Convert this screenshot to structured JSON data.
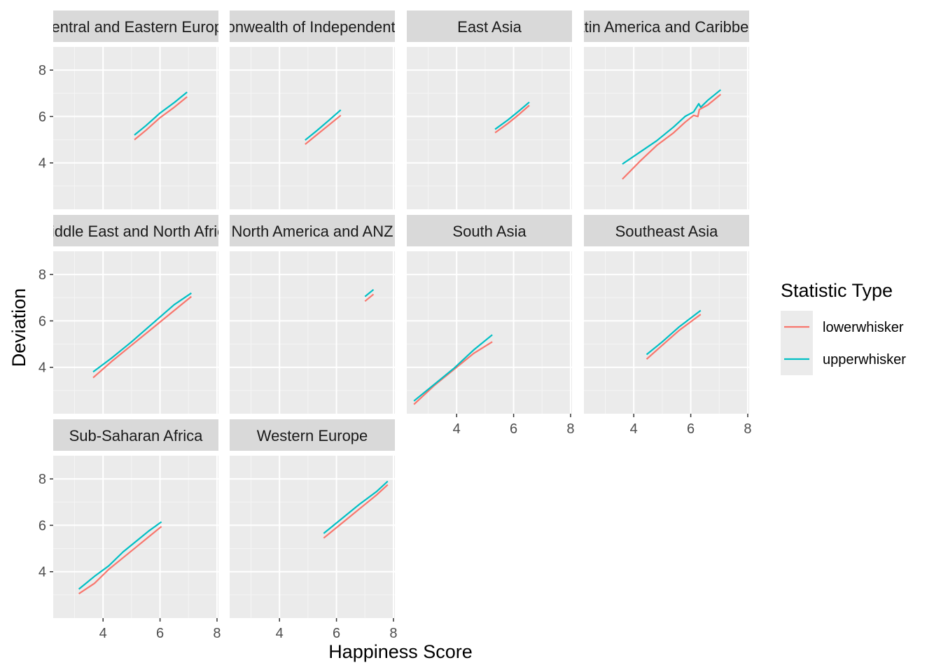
{
  "chart_data": {
    "type": "line",
    "facet_layout": "wrap",
    "xlabel": "Happiness Score",
    "ylabel": "Deviation",
    "xlim": [
      2.25,
      8.05
    ],
    "ylim": [
      2.0,
      9.0
    ],
    "x_ticks": [
      4,
      6,
      8
    ],
    "y_ticks": [
      4,
      6,
      8
    ],
    "grid": true,
    "legend": {
      "title": "Statistic Type",
      "position": "right",
      "entries": [
        {
          "name": "lowerwhisker",
          "color": "#F8766D"
        },
        {
          "name": "upperwhisker",
          "color": "#00BFC4"
        }
      ]
    },
    "panels": [
      {
        "title": "Central and Eastern Europe",
        "series": [
          {
            "name": "lowerwhisker",
            "points": [
              [
                5.1,
                5.0
              ],
              [
                5.5,
                5.4
              ],
              [
                6.0,
                5.95
              ],
              [
                6.5,
                6.4
              ],
              [
                6.95,
                6.85
              ]
            ]
          },
          {
            "name": "upperwhisker",
            "points": [
              [
                5.1,
                5.2
              ],
              [
                5.5,
                5.6
              ],
              [
                6.0,
                6.15
              ],
              [
                6.5,
                6.6
              ],
              [
                6.95,
                7.05
              ]
            ]
          }
        ]
      },
      {
        "title": "Commonwealth of Independent States",
        "series": [
          {
            "name": "lowerwhisker",
            "points": [
              [
                4.9,
                4.8
              ],
              [
                5.3,
                5.2
              ],
              [
                5.7,
                5.6
              ],
              [
                6.15,
                6.05
              ]
            ]
          },
          {
            "name": "upperwhisker",
            "points": [
              [
                4.9,
                4.98
              ],
              [
                5.3,
                5.38
              ],
              [
                5.7,
                5.8
              ],
              [
                6.15,
                6.28
              ]
            ]
          }
        ]
      },
      {
        "title": "East Asia",
        "series": [
          {
            "name": "lowerwhisker",
            "points": [
              [
                5.35,
                5.3
              ],
              [
                5.8,
                5.7
              ],
              [
                6.2,
                6.1
              ],
              [
                6.55,
                6.48
              ]
            ]
          },
          {
            "name": "upperwhisker",
            "points": [
              [
                5.35,
                5.45
              ],
              [
                5.8,
                5.85
              ],
              [
                6.2,
                6.25
              ],
              [
                6.55,
                6.62
              ]
            ]
          }
        ]
      },
      {
        "title": "Latin America and Caribbean",
        "series": [
          {
            "name": "lowerwhisker",
            "points": [
              [
                3.6,
                3.3
              ],
              [
                4.2,
                4.05
              ],
              [
                4.8,
                4.75
              ],
              [
                5.4,
                5.3
              ],
              [
                5.8,
                5.75
              ],
              [
                6.1,
                6.05
              ],
              [
                6.25,
                6.0
              ],
              [
                6.3,
                6.3
              ],
              [
                6.6,
                6.5
              ],
              [
                7.05,
                6.95
              ]
            ]
          },
          {
            "name": "upperwhisker",
            "points": [
              [
                3.6,
                3.95
              ],
              [
                4.2,
                4.45
              ],
              [
                4.8,
                4.95
              ],
              [
                5.4,
                5.55
              ],
              [
                5.8,
                6.0
              ],
              [
                6.1,
                6.2
              ],
              [
                6.28,
                6.55
              ],
              [
                6.35,
                6.4
              ],
              [
                6.6,
                6.7
              ],
              [
                7.05,
                7.15
              ]
            ]
          }
        ]
      },
      {
        "title": "Middle East and North Africa",
        "series": [
          {
            "name": "lowerwhisker",
            "points": [
              [
                3.65,
                3.55
              ],
              [
                4.3,
                4.25
              ],
              [
                5.0,
                4.95
              ],
              [
                5.7,
                5.65
              ],
              [
                6.5,
                6.45
              ],
              [
                7.1,
                7.05
              ]
            ]
          },
          {
            "name": "upperwhisker",
            "points": [
              [
                3.65,
                3.8
              ],
              [
                4.3,
                4.4
              ],
              [
                5.0,
                5.1
              ],
              [
                5.7,
                5.85
              ],
              [
                6.5,
                6.7
              ],
              [
                7.1,
                7.2
              ]
            ]
          }
        ]
      },
      {
        "title": "North America and ANZ",
        "series": [
          {
            "name": "lowerwhisker",
            "points": [
              [
                7.0,
                6.85
              ],
              [
                7.3,
                7.15
              ]
            ]
          },
          {
            "name": "upperwhisker",
            "points": [
              [
                7.0,
                7.05
              ],
              [
                7.3,
                7.35
              ]
            ]
          }
        ]
      },
      {
        "title": "South Asia",
        "series": [
          {
            "name": "lowerwhisker",
            "points": [
              [
                2.5,
                2.4
              ],
              [
                3.2,
                3.2
              ],
              [
                3.9,
                3.9
              ],
              [
                4.6,
                4.6
              ],
              [
                5.25,
                5.1
              ]
            ]
          },
          {
            "name": "upperwhisker",
            "points": [
              [
                2.5,
                2.55
              ],
              [
                3.2,
                3.25
              ],
              [
                3.9,
                3.95
              ],
              [
                4.6,
                4.75
              ],
              [
                5.25,
                5.4
              ]
            ]
          }
        ]
      },
      {
        "title": "Southeast Asia",
        "series": [
          {
            "name": "lowerwhisker",
            "points": [
              [
                4.45,
                4.35
              ],
              [
                5.0,
                4.95
              ],
              [
                5.6,
                5.6
              ],
              [
                6.35,
                6.28
              ]
            ]
          },
          {
            "name": "upperwhisker",
            "points": [
              [
                4.45,
                4.55
              ],
              [
                5.0,
                5.1
              ],
              [
                5.6,
                5.75
              ],
              [
                6.35,
                6.45
              ]
            ]
          }
        ]
      },
      {
        "title": "Sub-Saharan Africa",
        "series": [
          {
            "name": "lowerwhisker",
            "points": [
              [
                3.15,
                3.05
              ],
              [
                3.7,
                3.5
              ],
              [
                4.2,
                4.1
              ],
              [
                4.7,
                4.6
              ],
              [
                5.2,
                5.1
              ],
              [
                5.6,
                5.5
              ],
              [
                6.05,
                5.95
              ]
            ]
          },
          {
            "name": "upperwhisker",
            "points": [
              [
                3.15,
                3.25
              ],
              [
                3.7,
                3.8
              ],
              [
                4.2,
                4.25
              ],
              [
                4.7,
                4.85
              ],
              [
                5.2,
                5.35
              ],
              [
                5.6,
                5.75
              ],
              [
                6.05,
                6.15
              ]
            ]
          }
        ]
      },
      {
        "title": "Western Europe",
        "series": [
          {
            "name": "lowerwhisker",
            "points": [
              [
                5.55,
                5.45
              ],
              [
                6.2,
                6.1
              ],
              [
                6.8,
                6.7
              ],
              [
                7.4,
                7.3
              ],
              [
                7.8,
                7.75
              ]
            ]
          },
          {
            "name": "upperwhisker",
            "points": [
              [
                5.55,
                5.65
              ],
              [
                6.2,
                6.3
              ],
              [
                6.8,
                6.9
              ],
              [
                7.4,
                7.45
              ],
              [
                7.8,
                7.9
              ]
            ]
          }
        ]
      }
    ]
  }
}
